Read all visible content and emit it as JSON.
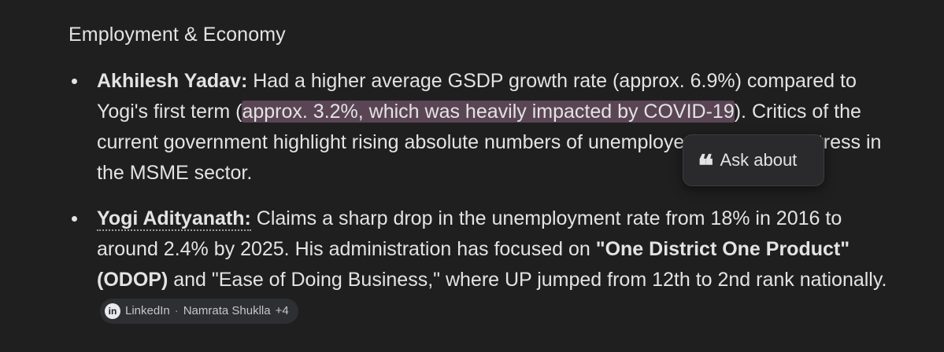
{
  "section": {
    "heading": "Employment & Economy"
  },
  "points": [
    {
      "name": "Akhilesh Yadav:",
      "text_before_highlight": " Had a higher average GSDP growth rate (approx. 6.9%) compared to Yogi's first term (",
      "highlight": "approx. 3.2%, which was heavily impacted by COVID-19",
      "text_after_highlight": "). Critics of the current government highlight rising absolute numbers of unemployed youth and distress in the MSME sector."
    },
    {
      "name": "Yogi Adityanath:",
      "text_1": " Claims a sharp drop in the unemployment rate from 18% in 2016 to around 2.4% by 2025. His administration has focused on ",
      "bold_1": "\"One District One Product\" (ODOP)",
      "text_2": " and \"Ease of Doing Business,\" where UP jumped from 12th to 2nd rank nationally.",
      "source": {
        "icon": "linkedin-icon",
        "icon_glyph": "in",
        "site": "LinkedIn",
        "separator": "·",
        "author": "Namrata Shuklla",
        "more": "+4"
      }
    }
  ],
  "popup": {
    "icon": "quote-icon",
    "icon_glyph": "❝",
    "label": "Ask about"
  }
}
